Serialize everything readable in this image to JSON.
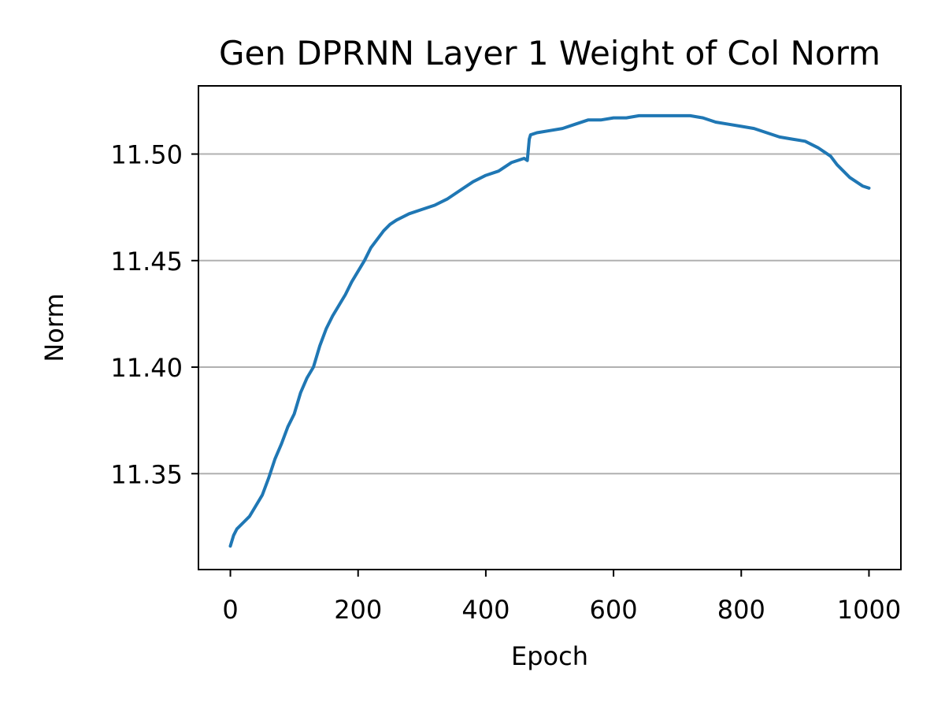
{
  "chart_data": {
    "type": "line",
    "title": "Gen DPRNN Layer 1 Weight of Col Norm",
    "xlabel": "Epoch",
    "ylabel": "Norm",
    "xlim": [
      -50,
      1050
    ],
    "ylim": [
      11.305,
      11.532
    ],
    "xticks": [
      0,
      200,
      400,
      600,
      800,
      1000
    ],
    "xtick_labels": [
      "0",
      "200",
      "400",
      "600",
      "800",
      "1000"
    ],
    "yticks": [
      11.35,
      11.4,
      11.45,
      11.5
    ],
    "ytick_labels": [
      "11.35",
      "11.40",
      "11.45",
      "11.50"
    ],
    "grid": "horizontal",
    "series": [
      {
        "color": "#1f77b4",
        "x": [
          0,
          5,
          10,
          20,
          30,
          40,
          50,
          60,
          70,
          80,
          90,
          100,
          110,
          120,
          130,
          140,
          150,
          160,
          170,
          180,
          190,
          200,
          210,
          220,
          230,
          240,
          250,
          260,
          280,
          300,
          320,
          340,
          360,
          380,
          400,
          420,
          440,
          460,
          465,
          468,
          470,
          480,
          500,
          520,
          540,
          560,
          580,
          600,
          620,
          640,
          660,
          680,
          700,
          720,
          740,
          760,
          780,
          800,
          820,
          840,
          860,
          880,
          900,
          920,
          940,
          950,
          960,
          970,
          980,
          990,
          1000
        ],
        "y": [
          11.316,
          11.321,
          11.324,
          11.327,
          11.33,
          11.335,
          11.34,
          11.348,
          11.357,
          11.364,
          11.372,
          11.378,
          11.388,
          11.395,
          11.4,
          11.41,
          11.418,
          11.424,
          11.429,
          11.434,
          11.44,
          11.445,
          11.45,
          11.456,
          11.46,
          11.464,
          11.467,
          11.469,
          11.472,
          11.474,
          11.476,
          11.479,
          11.483,
          11.487,
          11.49,
          11.492,
          11.496,
          11.498,
          11.497,
          11.507,
          11.509,
          11.51,
          11.511,
          11.512,
          11.514,
          11.516,
          11.516,
          11.517,
          11.517,
          11.518,
          11.518,
          11.518,
          11.518,
          11.518,
          11.517,
          11.515,
          11.514,
          11.513,
          11.512,
          11.51,
          11.508,
          11.507,
          11.506,
          11.503,
          11.499,
          11.495,
          11.492,
          11.489,
          11.487,
          11.485,
          11.484
        ]
      }
    ]
  }
}
